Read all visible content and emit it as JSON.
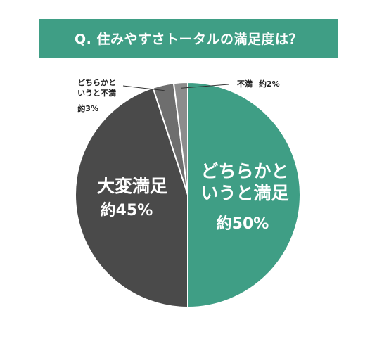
{
  "title": "Q. 住みやすさトータルの満足度は？",
  "colors": {
    "banner": "#3f9e85",
    "somewhat_satisfied": "#3f9e85",
    "very_satisfied": "#4a4a4a",
    "somewhat_unsatisfied": "#6e6e6e",
    "unsatisfied": "#8c8c8c",
    "outline": "#ffffff"
  },
  "chart_data": {
    "type": "pie",
    "title": "Q. 住みやすさトータルの満足度は？",
    "slices": [
      {
        "key": "somewhat_satisfied",
        "label_lines": [
          "どちらかと",
          "いうと満足"
        ],
        "value_text": "約50%",
        "value": 50
      },
      {
        "key": "very_satisfied",
        "label_lines": [
          "大変満足"
        ],
        "value_text": "約45%",
        "value": 45
      },
      {
        "key": "somewhat_unsatisfied",
        "label_lines": [
          "どちらかと",
          "いうと不満"
        ],
        "value_text": "約3%",
        "value": 3
      },
      {
        "key": "unsatisfied",
        "label_lines": [
          "不満"
        ],
        "value_text": "約2%",
        "value": 2
      }
    ]
  }
}
